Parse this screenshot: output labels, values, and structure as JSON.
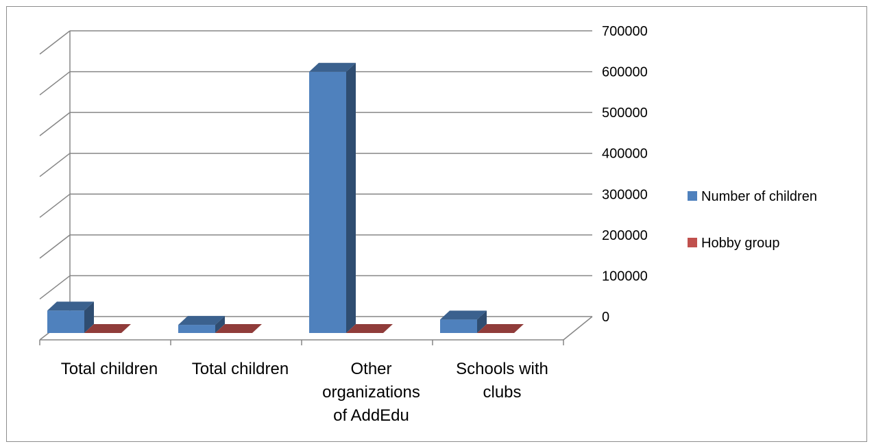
{
  "chart_data": {
    "type": "bar",
    "style": "3d-clustered-column",
    "categories": [
      [
        "Total children"
      ],
      [
        "Total children"
      ],
      [
        "Other",
        "organizations",
        "of AddEdu"
      ],
      [
        "Schools with",
        "clubs"
      ]
    ],
    "series": [
      {
        "name": "Number of children",
        "color": "#4F81BD",
        "values": [
          55000,
          20000,
          640000,
          33000
        ]
      },
      {
        "name": "Hobby group",
        "color": "#C0504D",
        "values": [
          0,
          0,
          0,
          0
        ]
      }
    ],
    "y_axis": {
      "min": 0,
      "max": 700000,
      "step": 100000,
      "ticks": [
        "0",
        "100000",
        "200000",
        "300000",
        "400000",
        "500000",
        "600000",
        "700000"
      ],
      "position": "right"
    },
    "grid": true,
    "legend": {
      "position": "right",
      "items": [
        "Number of children",
        "Hobby group"
      ]
    }
  }
}
